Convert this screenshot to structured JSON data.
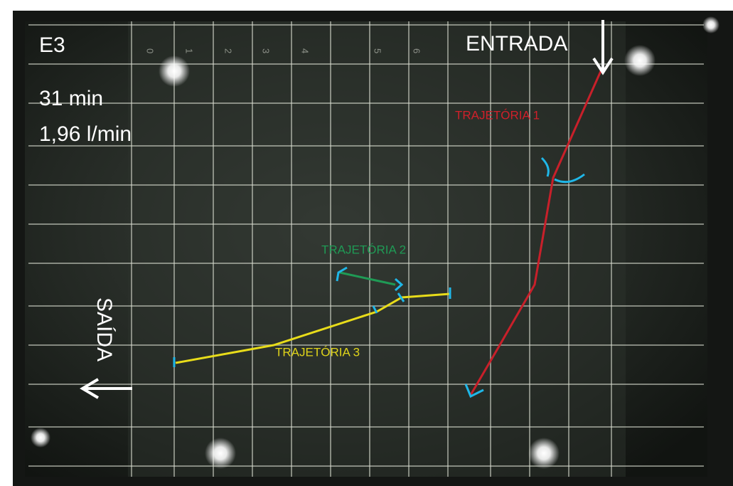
{
  "header": {
    "experiment": "E3",
    "time": "31 min",
    "flow": "1,96 l/min"
  },
  "entrance": "ENTRADA",
  "exit": "SAÍDA",
  "trajectories": [
    {
      "label": "TRAJETÓRIA 1"
    },
    {
      "label": "TRAJETÓRIA 2"
    },
    {
      "label": "TRAJETÓRIA 3"
    }
  ],
  "grid_labels": [
    "0",
    "1",
    "2",
    "3",
    "4",
    "5",
    "6"
  ]
}
